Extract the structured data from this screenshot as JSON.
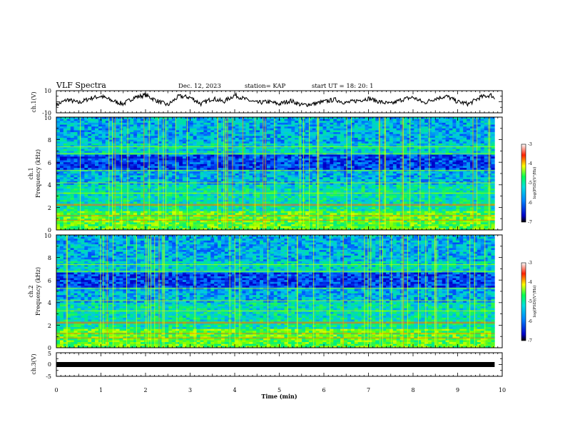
{
  "header": {
    "title": "VLF Spectra",
    "date": "Dec. 12, 2023",
    "station": "station= KAP",
    "start": "start  UT =   18: 20: 1"
  },
  "colors": {
    "trace": "#000000",
    "colormap": [
      "#000000",
      "#0000ff",
      "#00ccff",
      "#00ff66",
      "#ffff00",
      "#ff3300",
      "#ffffff"
    ]
  },
  "chart_data": [
    {
      "type": "line",
      "title": "",
      "ylabel": "ch.1(V)",
      "ylim": [
        -10,
        10
      ],
      "ytick_labels": [
        "10",
        "-10"
      ],
      "x": [
        0,
        0.25,
        0.5,
        0.75,
        1.0,
        1.25,
        1.5,
        1.75,
        2.0,
        2.25,
        2.5,
        2.75,
        3.0,
        3.25,
        3.5,
        3.75,
        4.0,
        4.25,
        4.5,
        4.75,
        5.0,
        5.25,
        5.5,
        5.75,
        6.0,
        6.25,
        6.5,
        6.75,
        7.0,
        7.25,
        7.5,
        7.75,
        8.0,
        8.25,
        8.5,
        8.75,
        9.0,
        9.25,
        9.5,
        9.75,
        9.83
      ],
      "values": [
        -3,
        2,
        -1,
        3,
        5,
        1,
        -2,
        4,
        6,
        1,
        -3,
        5,
        4,
        -2,
        3,
        0,
        6,
        2,
        -1,
        0,
        -2,
        1,
        -3,
        -2,
        0,
        2,
        -1,
        1,
        3,
        0,
        -2,
        2,
        4,
        -1,
        3,
        5,
        0,
        -2,
        4,
        6,
        3
      ]
    },
    {
      "type": "heatmap",
      "title": "",
      "ylabel": "ch.1\nFrequency (kHz)",
      "xlim": [
        0,
        9.83
      ],
      "ylim": [
        0,
        10
      ],
      "ytick_labels": [
        "0",
        "2",
        "4",
        "6",
        "8",
        "10"
      ],
      "colorbar": {
        "label": "log(PSD)(V²/Hz)",
        "range": [
          -7,
          -3
        ],
        "tick_labels": [
          "-3",
          "-4",
          "-5",
          "-6",
          "-7"
        ]
      }
    },
    {
      "type": "heatmap",
      "title": "",
      "ylabel": "ch.2\nFrequency (kHz)",
      "xlim": [
        0,
        9.83
      ],
      "ylim": [
        0,
        10
      ],
      "ytick_labels": [
        "0",
        "2",
        "4",
        "6",
        "8",
        "10"
      ],
      "colorbar": {
        "label": "log(PSD)(V²/Hz)",
        "range": [
          -7,
          -3
        ],
        "tick_labels": [
          "-3",
          "-4",
          "-5",
          "-6",
          "-7"
        ]
      }
    },
    {
      "type": "line",
      "title": "",
      "ylabel": "ch.3(V)",
      "ylim": [
        -5,
        5
      ],
      "ytick_labels": [
        "5",
        "0",
        "-5"
      ],
      "x": [
        0,
        9.83
      ],
      "values": [
        0,
        0
      ]
    }
  ],
  "xaxis": {
    "label": "Time (min)",
    "range": [
      0,
      10
    ],
    "tick_labels": [
      "0",
      "1",
      "2",
      "3",
      "4",
      "5",
      "6",
      "7",
      "8",
      "9",
      "10"
    ]
  }
}
